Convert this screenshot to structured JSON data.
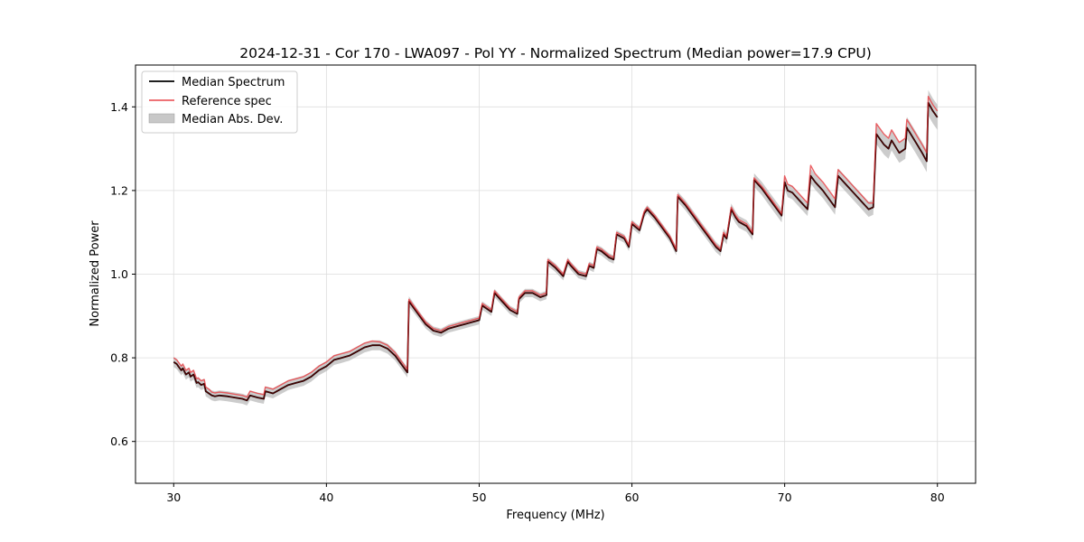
{
  "chart_data": {
    "type": "line",
    "title": "2024-12-31 - Cor 170 - LWA097 - Pol YY - Normalized Spectrum (Median power=17.9 CPU)",
    "xlabel": "Frequency (MHz)",
    "ylabel": "Normalized Power",
    "xlim": [
      27.5,
      82.5
    ],
    "ylim": [
      0.5,
      1.5
    ],
    "xticks": [
      30,
      40,
      50,
      60,
      70,
      80
    ],
    "yticks": [
      0.6,
      0.8,
      1.0,
      1.2,
      1.4
    ],
    "grid": true,
    "legend_position": "top-left",
    "legend": [
      "Median Spectrum",
      "Reference spec",
      "Median Abs. Dev."
    ],
    "colors": {
      "median": "#000000",
      "reference": "#e8454a",
      "mad": "#b0b0b0",
      "overlap": "#8b0000"
    },
    "series": [
      {
        "name": "Median Spectrum",
        "x": [
          30.0,
          30.2,
          30.3,
          30.5,
          30.6,
          30.8,
          31.0,
          31.1,
          31.3,
          31.5,
          31.6,
          31.8,
          32.0,
          32.1,
          32.3,
          32.5,
          32.7,
          33.0,
          33.5,
          34.0,
          34.5,
          34.8,
          35.0,
          35.5,
          35.9,
          36.0,
          36.5,
          37.0,
          37.5,
          38.0,
          38.5,
          39.0,
          39.5,
          40.0,
          40.5,
          41.0,
          41.5,
          42.0,
          42.5,
          43.0,
          43.5,
          44.0,
          44.5,
          45.0,
          45.3,
          45.4,
          46.0,
          46.5,
          47.0,
          47.5,
          48.0,
          48.5,
          49.0,
          49.5,
          50.0,
          50.2,
          50.8,
          51.0,
          51.5,
          52.0,
          52.5,
          52.6,
          53.0,
          53.5,
          54.0,
          54.4,
          54.5,
          55.0,
          55.5,
          55.8,
          56.0,
          56.5,
          57.0,
          57.2,
          57.5,
          57.7,
          58.0,
          58.5,
          58.8,
          59.0,
          59.5,
          59.8,
          60.0,
          60.5,
          60.8,
          61.0,
          61.5,
          62.0,
          62.5,
          62.9,
          63.0,
          63.5,
          64.0,
          64.5,
          65.0,
          65.5,
          65.8,
          66.0,
          66.2,
          66.5,
          66.8,
          67.0,
          67.5,
          67.9,
          68.0,
          68.5,
          69.0,
          69.5,
          69.8,
          70.0,
          70.2,
          70.5,
          71.0,
          71.5,
          71.7,
          72.0,
          72.5,
          73.0,
          73.3,
          73.5,
          74.0,
          74.5,
          75.0,
          75.5,
          75.8,
          76.0,
          76.5,
          76.8,
          77.0,
          77.5,
          77.9,
          78.0,
          78.5,
          79.0,
          79.3,
          79.4,
          79.7,
          80.0
        ],
        "values": [
          0.79,
          0.785,
          0.78,
          0.77,
          0.775,
          0.76,
          0.765,
          0.755,
          0.76,
          0.74,
          0.742,
          0.735,
          0.738,
          0.72,
          0.715,
          0.71,
          0.708,
          0.71,
          0.708,
          0.705,
          0.702,
          0.698,
          0.71,
          0.705,
          0.702,
          0.72,
          0.715,
          0.725,
          0.735,
          0.74,
          0.745,
          0.755,
          0.77,
          0.78,
          0.795,
          0.8,
          0.805,
          0.815,
          0.825,
          0.83,
          0.83,
          0.822,
          0.805,
          0.78,
          0.765,
          0.935,
          0.905,
          0.88,
          0.865,
          0.86,
          0.87,
          0.875,
          0.88,
          0.885,
          0.89,
          0.925,
          0.91,
          0.955,
          0.935,
          0.915,
          0.905,
          0.94,
          0.955,
          0.955,
          0.945,
          0.95,
          1.03,
          1.015,
          0.995,
          1.03,
          1.02,
          1.0,
          0.995,
          1.02,
          1.015,
          1.06,
          1.055,
          1.04,
          1.035,
          1.095,
          1.085,
          1.065,
          1.12,
          1.105,
          1.145,
          1.155,
          1.135,
          1.11,
          1.085,
          1.055,
          1.185,
          1.165,
          1.14,
          1.115,
          1.09,
          1.065,
          1.055,
          1.095,
          1.085,
          1.155,
          1.135,
          1.125,
          1.115,
          1.095,
          1.225,
          1.205,
          1.18,
          1.155,
          1.14,
          1.22,
          1.2,
          1.195,
          1.175,
          1.155,
          1.235,
          1.22,
          1.2,
          1.175,
          1.16,
          1.235,
          1.215,
          1.195,
          1.175,
          1.155,
          1.16,
          1.335,
          1.31,
          1.3,
          1.32,
          1.29,
          1.3,
          1.35,
          1.32,
          1.29,
          1.27,
          1.41,
          1.39,
          1.375
        ]
      },
      {
        "name": "Reference spec",
        "x": [
          30.0,
          30.2,
          30.3,
          30.5,
          30.6,
          30.8,
          31.0,
          31.1,
          31.3,
          31.5,
          31.6,
          31.8,
          32.0,
          32.1,
          32.3,
          32.5,
          32.7,
          33.0,
          33.5,
          34.0,
          34.5,
          34.8,
          35.0,
          35.5,
          35.9,
          36.0,
          36.5,
          37.0,
          37.5,
          38.0,
          38.5,
          39.0,
          39.5,
          40.0,
          40.5,
          41.0,
          41.5,
          42.0,
          42.5,
          43.0,
          43.5,
          44.0,
          44.5,
          45.0,
          45.3,
          45.4,
          46.0,
          46.5,
          47.0,
          47.5,
          48.0,
          48.5,
          49.0,
          49.5,
          50.0,
          50.2,
          50.8,
          51.0,
          51.5,
          52.0,
          52.5,
          52.6,
          53.0,
          53.5,
          54.0,
          54.4,
          54.5,
          55.0,
          55.5,
          55.8,
          56.0,
          56.5,
          57.0,
          57.2,
          57.5,
          57.7,
          58.0,
          58.5,
          58.8,
          59.0,
          59.5,
          59.8,
          60.0,
          60.5,
          60.8,
          61.0,
          61.5,
          62.0,
          62.5,
          62.9,
          63.0,
          63.5,
          64.0,
          64.5,
          65.0,
          65.5,
          65.8,
          66.0,
          66.2,
          66.5,
          66.8,
          67.0,
          67.5,
          67.9,
          68.0,
          68.5,
          69.0,
          69.5,
          69.8,
          70.0,
          70.2,
          70.5,
          71.0,
          71.5,
          71.7,
          72.0,
          72.5,
          73.0,
          73.3,
          73.5,
          74.0,
          74.5,
          75.0,
          75.5,
          75.8,
          76.0,
          76.5,
          76.8,
          77.0,
          77.5,
          77.9,
          78.0,
          78.5,
          79.0,
          79.3,
          79.4,
          79.7,
          80.0
        ],
        "values": [
          0.8,
          0.795,
          0.79,
          0.78,
          0.785,
          0.77,
          0.775,
          0.765,
          0.77,
          0.75,
          0.752,
          0.745,
          0.748,
          0.73,
          0.725,
          0.718,
          0.716,
          0.718,
          0.716,
          0.713,
          0.71,
          0.706,
          0.72,
          0.715,
          0.712,
          0.73,
          0.725,
          0.735,
          0.745,
          0.75,
          0.755,
          0.765,
          0.78,
          0.79,
          0.805,
          0.81,
          0.815,
          0.825,
          0.835,
          0.84,
          0.838,
          0.83,
          0.812,
          0.787,
          0.772,
          0.94,
          0.91,
          0.885,
          0.87,
          0.865,
          0.875,
          0.88,
          0.885,
          0.89,
          0.895,
          0.93,
          0.915,
          0.96,
          0.94,
          0.92,
          0.91,
          0.945,
          0.96,
          0.96,
          0.95,
          0.955,
          1.035,
          1.02,
          1.0,
          1.035,
          1.025,
          1.005,
          1.0,
          1.025,
          1.02,
          1.065,
          1.06,
          1.045,
          1.04,
          1.1,
          1.09,
          1.07,
          1.125,
          1.11,
          1.15,
          1.16,
          1.14,
          1.115,
          1.09,
          1.06,
          1.19,
          1.17,
          1.145,
          1.12,
          1.095,
          1.07,
          1.06,
          1.1,
          1.09,
          1.16,
          1.14,
          1.13,
          1.12,
          1.1,
          1.23,
          1.21,
          1.185,
          1.16,
          1.145,
          1.235,
          1.215,
          1.21,
          1.19,
          1.17,
          1.26,
          1.24,
          1.22,
          1.195,
          1.18,
          1.25,
          1.23,
          1.21,
          1.19,
          1.17,
          1.17,
          1.36,
          1.335,
          1.325,
          1.345,
          1.315,
          1.325,
          1.37,
          1.34,
          1.31,
          1.29,
          1.425,
          1.405,
          1.39
        ]
      },
      {
        "name": "Median Abs. Dev.",
        "description_of_band": "symmetric band around median spectrum",
        "half_width": [
          0.012,
          0.012,
          0.012,
          0.012,
          0.012,
          0.012,
          0.012,
          0.012,
          0.012,
          0.012,
          0.012,
          0.012,
          0.012,
          0.012,
          0.012,
          0.012,
          0.012,
          0.012,
          0.012,
          0.012,
          0.012,
          0.012,
          0.012,
          0.012,
          0.012,
          0.012,
          0.012,
          0.012,
          0.012,
          0.012,
          0.012,
          0.012,
          0.012,
          0.012,
          0.012,
          0.012,
          0.012,
          0.012,
          0.012,
          0.012,
          0.012,
          0.012,
          0.012,
          0.012,
          0.012,
          0.012,
          0.01,
          0.01,
          0.01,
          0.01,
          0.01,
          0.01,
          0.01,
          0.01,
          0.01,
          0.01,
          0.01,
          0.01,
          0.01,
          0.01,
          0.01,
          0.01,
          0.01,
          0.01,
          0.01,
          0.01,
          0.01,
          0.01,
          0.01,
          0.01,
          0.01,
          0.01,
          0.01,
          0.01,
          0.01,
          0.01,
          0.01,
          0.01,
          0.01,
          0.01,
          0.01,
          0.01,
          0.01,
          0.01,
          0.01,
          0.01,
          0.01,
          0.01,
          0.01,
          0.01,
          0.012,
          0.012,
          0.012,
          0.012,
          0.012,
          0.012,
          0.012,
          0.014,
          0.014,
          0.014,
          0.014,
          0.014,
          0.014,
          0.014,
          0.016,
          0.016,
          0.016,
          0.016,
          0.016,
          0.016,
          0.016,
          0.016,
          0.016,
          0.016,
          0.018,
          0.018,
          0.018,
          0.018,
          0.018,
          0.018,
          0.018,
          0.018,
          0.018,
          0.018,
          0.018,
          0.024,
          0.024,
          0.024,
          0.024,
          0.024,
          0.024,
          0.026,
          0.026,
          0.026,
          0.026,
          0.03,
          0.03,
          0.03
        ]
      }
    ]
  }
}
